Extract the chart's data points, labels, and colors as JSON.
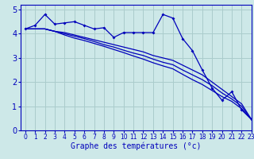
{
  "xlabel": "Graphe des températures (°c)",
  "background_color": "#cde8e8",
  "grid_color": "#aacccc",
  "line_color": "#0000bb",
  "xlim": [
    -0.5,
    23
  ],
  "ylim": [
    0,
    5.2
  ],
  "xticks": [
    0,
    1,
    2,
    3,
    4,
    5,
    6,
    7,
    8,
    9,
    10,
    11,
    12,
    13,
    14,
    15,
    16,
    17,
    18,
    19,
    20,
    21,
    22,
    23
  ],
  "yticks": [
    0,
    1,
    2,
    3,
    4,
    5
  ],
  "jagged": [
    4.2,
    4.35,
    4.8,
    4.4,
    4.45,
    4.5,
    4.35,
    4.2,
    4.25,
    3.85,
    4.05,
    4.05,
    4.05,
    4.05,
    4.8,
    4.65,
    3.8,
    3.3,
    2.5,
    1.75,
    1.25,
    1.6,
    0.85,
    0.45
  ],
  "smooth1": [
    4.2,
    4.2,
    4.2,
    4.1,
    4.05,
    3.95,
    3.85,
    3.75,
    3.65,
    3.55,
    3.45,
    3.35,
    3.25,
    3.1,
    3.0,
    2.9,
    2.7,
    2.5,
    2.3,
    2.0,
    1.7,
    1.4,
    1.1,
    0.45
  ],
  "smooth2": [
    4.2,
    4.2,
    4.2,
    4.1,
    4.0,
    3.9,
    3.8,
    3.68,
    3.55,
    3.45,
    3.32,
    3.2,
    3.1,
    2.95,
    2.82,
    2.72,
    2.5,
    2.3,
    2.1,
    1.85,
    1.55,
    1.3,
    1.0,
    0.45
  ],
  "smooth3": [
    4.2,
    4.2,
    4.2,
    4.1,
    3.95,
    3.82,
    3.72,
    3.6,
    3.48,
    3.35,
    3.22,
    3.08,
    2.95,
    2.8,
    2.67,
    2.55,
    2.32,
    2.1,
    1.9,
    1.65,
    1.4,
    1.2,
    0.9,
    0.45
  ]
}
